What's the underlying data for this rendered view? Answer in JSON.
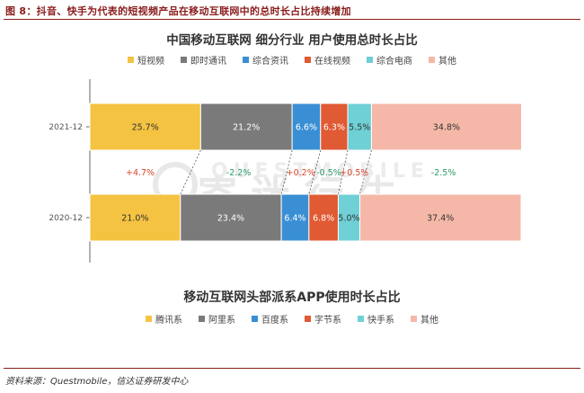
{
  "caption": "图 8：抖音、快手为代表的短视频产品在移动互联网中的总时长占比持续增加",
  "source": "资料来源：Questmobile，信达证券研发中心",
  "watermark": {
    "latin": "QUESTMOBILE",
    "cjk": "寄 迷 行 牛"
  },
  "chart_data": [
    {
      "type": "bar",
      "stacked": true,
      "orientation": "horizontal",
      "title": "中国移动互联网 细分行业 用户使用总时长占比",
      "categories": [
        "2021-12",
        "2020-12"
      ],
      "xlim": [
        0,
        100
      ],
      "legend_position": "top",
      "series": [
        {
          "name": "短视频",
          "color": "#f5c342",
          "values": [
            25.7,
            21.0
          ],
          "labels": [
            "25.7%",
            "21.0%"
          ]
        },
        {
          "name": "即时通讯",
          "color": "#7a7a7a",
          "values": [
            21.2,
            23.4
          ],
          "labels": [
            "21.2%",
            "23.4%"
          ]
        },
        {
          "name": "综合资讯",
          "color": "#3a8fd4",
          "values": [
            6.6,
            6.4
          ],
          "labels": [
            "6.6%",
            "6.4%"
          ]
        },
        {
          "name": "在线视频",
          "color": "#e05a33",
          "values": [
            6.3,
            6.8
          ],
          "labels": [
            "6.3%",
            "6.8%"
          ]
        },
        {
          "name": "综合电商",
          "color": "#6fd0d6",
          "values": [
            5.5,
            5.0
          ],
          "labels": [
            "5.5%",
            "5.0%"
          ]
        },
        {
          "name": "其他",
          "color": "#f5b8a8",
          "values": [
            34.8,
            37.4
          ],
          "labels": [
            "34.8%",
            "37.4%"
          ]
        }
      ],
      "changes": [
        "+4.7%",
        "-2.2%",
        "+0.2%",
        "-0.5%",
        "+0.5%",
        "-2.5%"
      ],
      "change_colors": {
        "up": "#d9452b",
        "down": "#2e9a6a"
      }
    },
    {
      "type": "bar",
      "title": "移动互联网头部派系APP使用时长占比",
      "legend_position": "top",
      "series": [
        {
          "name": "腾讯系",
          "color": "#f5c342"
        },
        {
          "name": "阿里系",
          "color": "#7a7a7a"
        },
        {
          "name": "百度系",
          "color": "#3a8fd4"
        },
        {
          "name": "字节系",
          "color": "#e05a33"
        },
        {
          "name": "快手系",
          "color": "#6fd0d6"
        },
        {
          "name": "其他",
          "color": "#f5b8a8"
        }
      ]
    }
  ]
}
